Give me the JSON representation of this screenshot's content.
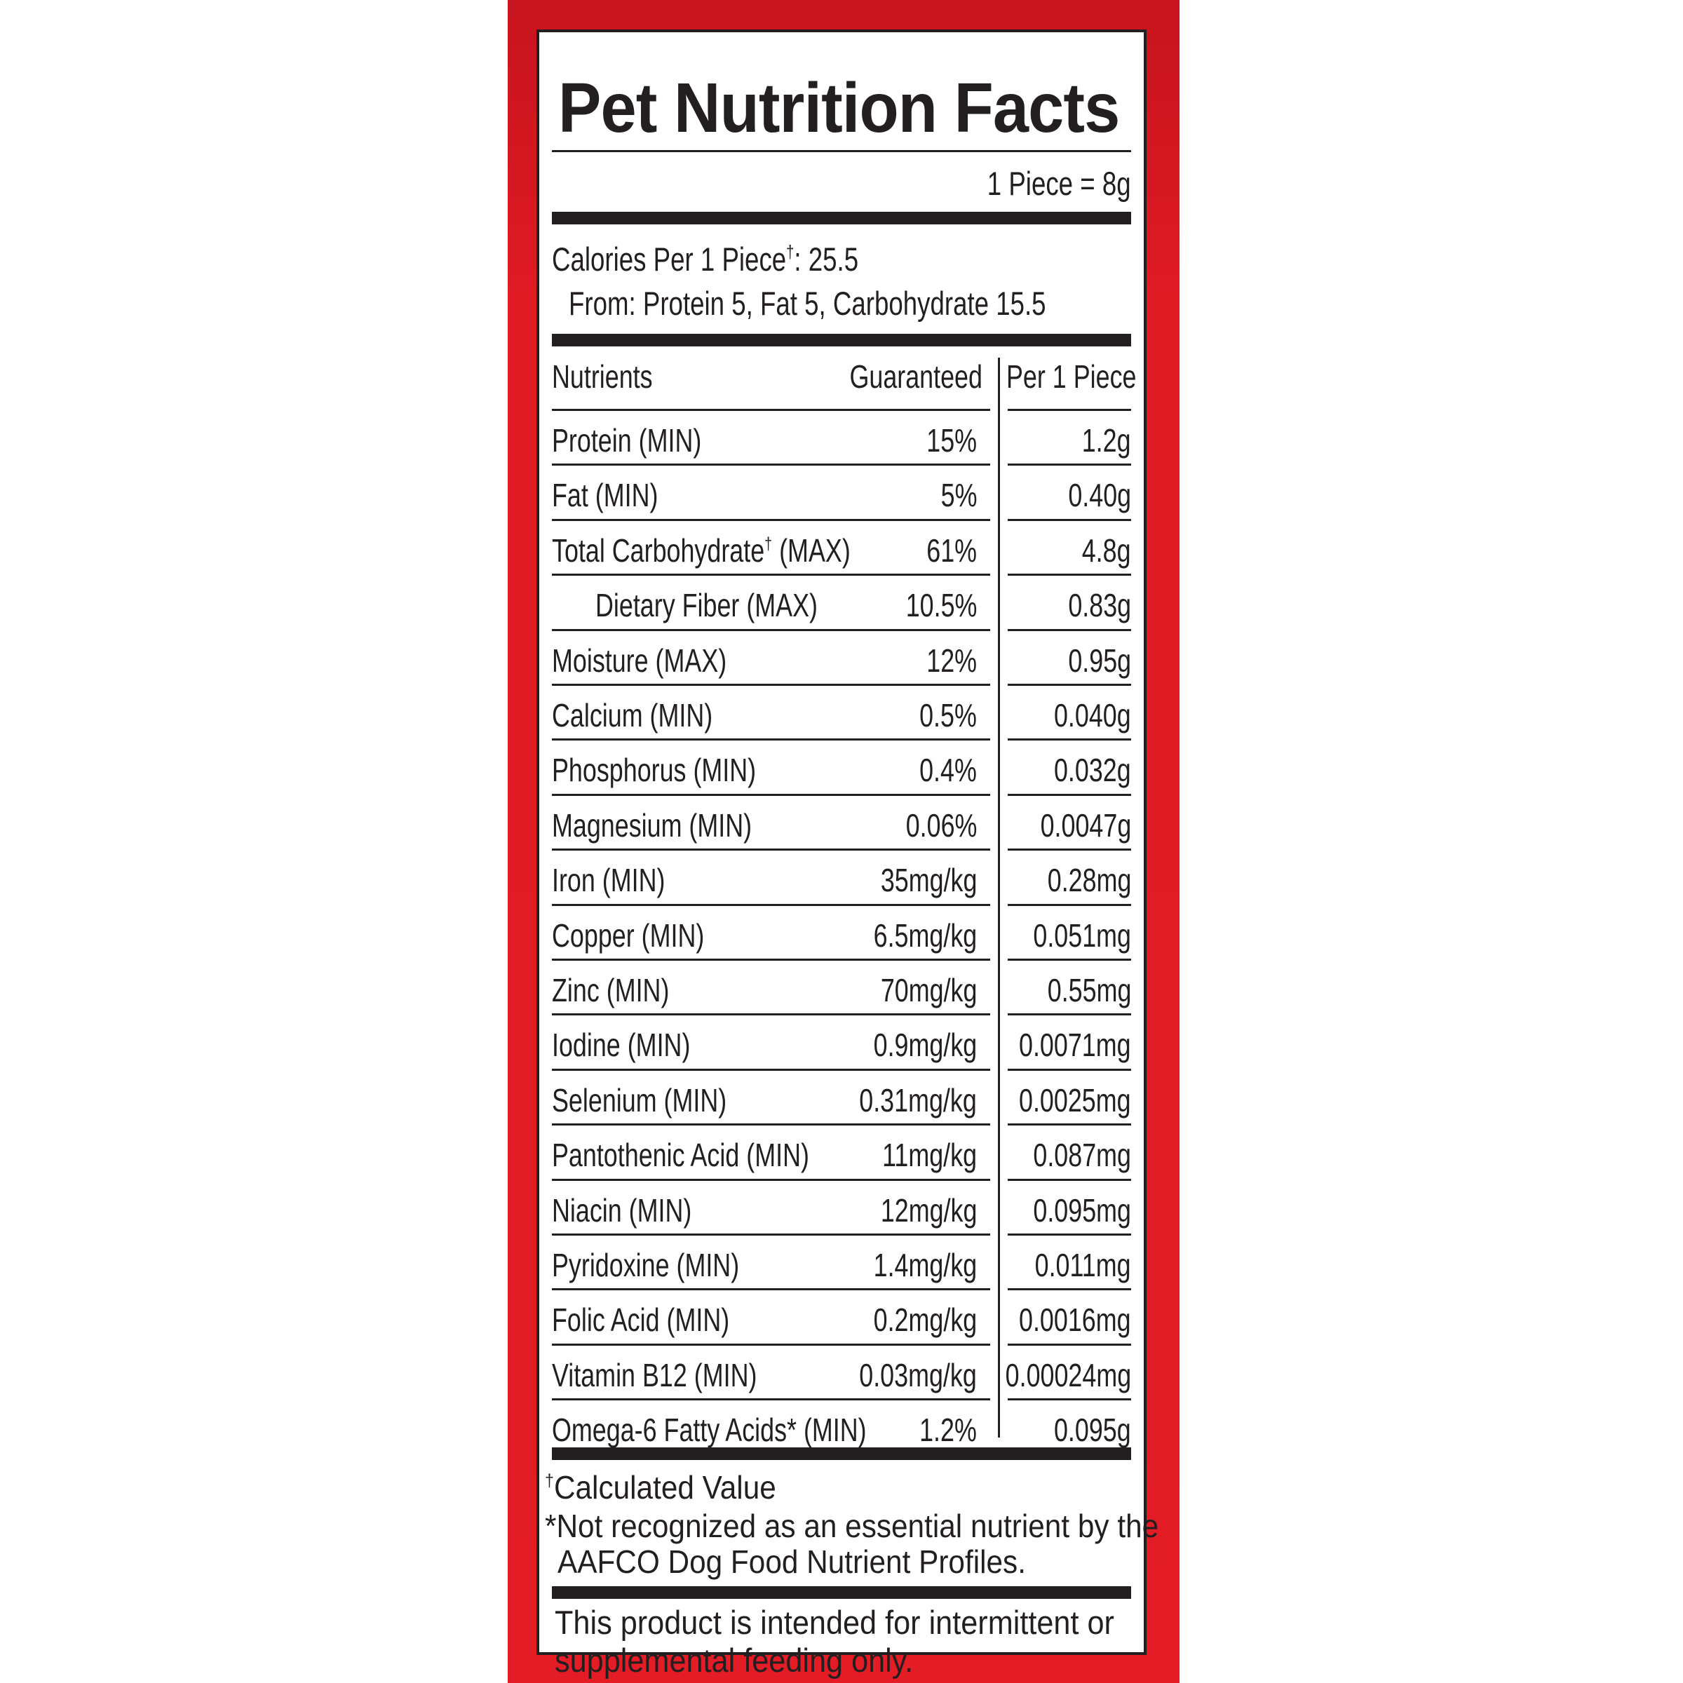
{
  "title": "Pet Nutrition Facts",
  "serving": "1 Piece = 8g",
  "calories": {
    "label": "Calories Per 1 Piece",
    "dagger": "†",
    "value": ": 25.5",
    "from": "From: Protein 5, Fat 5, Carbohydrate 15.5"
  },
  "table": {
    "headers": {
      "nutrients": "Nutrients",
      "guaranteed": "Guaranteed",
      "per_piece": "Per 1 Piece"
    },
    "rows": [
      {
        "name": "Protein (MIN)",
        "guaranteed": "15%",
        "per": "1.2g"
      },
      {
        "name": "Fat (MIN)",
        "guaranteed": "5%",
        "per": "0.40g"
      },
      {
        "name": "Total Carbohydrate",
        "dagger": "†",
        "suffix": " (MAX)",
        "guaranteed": "61%",
        "per": "4.8g"
      },
      {
        "name": "Dietary Fiber (MAX)",
        "guaranteed": "10.5%",
        "per": "0.83g",
        "indent": true
      },
      {
        "name": "Moisture (MAX)",
        "guaranteed": "12%",
        "per": "0.95g"
      },
      {
        "name": "Calcium (MIN)",
        "guaranteed": "0.5%",
        "per": "0.040g"
      },
      {
        "name": "Phosphorus (MIN)",
        "guaranteed": "0.4%",
        "per": "0.032g"
      },
      {
        "name": "Magnesium (MIN)",
        "guaranteed": "0.06%",
        "per": "0.0047g"
      },
      {
        "name": "Iron (MIN)",
        "guaranteed": "35mg/kg",
        "per": "0.28mg"
      },
      {
        "name": "Copper (MIN)",
        "guaranteed": "6.5mg/kg",
        "per": "0.051mg"
      },
      {
        "name": "Zinc (MIN)",
        "guaranteed": "70mg/kg",
        "per": "0.55mg"
      },
      {
        "name": "Iodine (MIN)",
        "guaranteed": "0.9mg/kg",
        "per": "0.0071mg"
      },
      {
        "name": "Selenium (MIN)",
        "guaranteed": "0.31mg/kg",
        "per": "0.0025mg"
      },
      {
        "name": "Pantothenic Acid (MIN)",
        "guaranteed": "11mg/kg",
        "per": "0.087mg"
      },
      {
        "name": "Niacin (MIN)",
        "guaranteed": "12mg/kg",
        "per": "0.095mg"
      },
      {
        "name": "Pyridoxine (MIN)",
        "guaranteed": "1.4mg/kg",
        "per": "0.011mg"
      },
      {
        "name": "Folic Acid (MIN)",
        "guaranteed": "0.2mg/kg",
        "per": "0.0016mg"
      },
      {
        "name": "Vitamin B12 (MIN)",
        "guaranteed": "0.03mg/kg",
        "per": "0.00024mg"
      },
      {
        "name": "Omega-6 Fatty Acids* (MIN)",
        "guaranteed": "1.2%",
        "per": "0.095g"
      }
    ]
  },
  "footnotes": {
    "dagger": "†",
    "calculated": "Calculated Value",
    "not_recognized_1": "*Not recognized as an essential nutrient by the",
    "not_recognized_2": "AAFCO Dog Food Nutrient Profiles."
  },
  "disclaimer": {
    "line1": "This product is intended for intermittent or",
    "line2": "supplemental feeding only."
  },
  "colors": {
    "panel_red": "#e31c25",
    "ink": "#231f20"
  }
}
